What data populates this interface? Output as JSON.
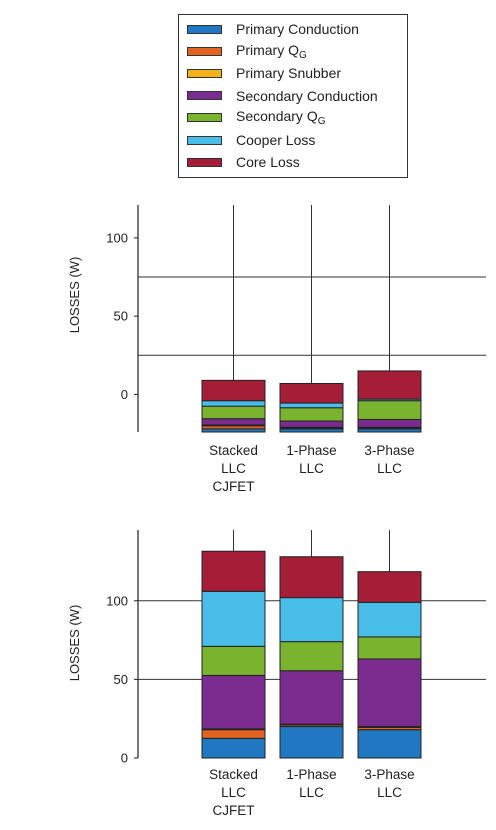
{
  "legend": {
    "items": [
      {
        "main": "Primary Conduction",
        "sub": "",
        "color": "#1f78c1"
      },
      {
        "main": "Primary Q",
        "sub": "G",
        "color": "#e2621f"
      },
      {
        "main": "Primary Snubber",
        "sub": "",
        "color": "#f3b11c"
      },
      {
        "main": "Secondary Conduction",
        "sub": "",
        "color": "#7b2c8f"
      },
      {
        "main": "Secondary Q",
        "sub": "G",
        "color": "#7ab32e"
      },
      {
        "main": "Cooper Loss",
        "sub": "",
        "color": "#48bde8"
      },
      {
        "main": "Core Loss",
        "sub": "",
        "color": "#a51d36"
      }
    ]
  },
  "chart_data": [
    {
      "type": "bar",
      "stacked": true,
      "ylabel": "LOSSES (W)",
      "yticks": [
        0,
        50,
        100
      ],
      "ylim": [
        -24,
        121
      ],
      "gridlines": [
        25,
        75
      ],
      "categories": [
        [
          "Stacked",
          "LLC",
          "CJFET"
        ],
        [
          "1-Phase",
          "LLC"
        ],
        [
          "3-Phase",
          "LLC"
        ]
      ],
      "series": [
        {
          "name": "Primary Conduction",
          "values": [
            2,
            2,
            2
          ]
        },
        {
          "name": "Primary QG",
          "values": [
            2,
            0.5,
            0.5
          ]
        },
        {
          "name": "Primary Snubber",
          "values": [
            0.5,
            0.5,
            0.5
          ]
        },
        {
          "name": "Secondary Conduction",
          "values": [
            4,
            4,
            5
          ]
        },
        {
          "name": "Secondary QG",
          "values": [
            8,
            8.5,
            12
          ]
        },
        {
          "name": "Cooper Loss",
          "values": [
            3.5,
            3,
            1
          ]
        },
        {
          "name": "Core Loss",
          "values": [
            13,
            12.5,
            18
          ]
        }
      ]
    },
    {
      "type": "bar",
      "stacked": true,
      "ylabel": "LOSSES (W)",
      "yticks": [
        0,
        50,
        100
      ],
      "ylim": [
        0,
        145
      ],
      "gridlines": [
        50,
        100
      ],
      "categories": [
        [
          "Stacked",
          "LLC",
          "CJFET"
        ],
        [
          "1-Phase",
          "LLC"
        ],
        [
          "3-Phase",
          "LLC"
        ]
      ],
      "series": [
        {
          "name": "Primary Conduction",
          "values": [
            12.5,
            20,
            18
          ]
        },
        {
          "name": "Primary QG",
          "values": [
            5.5,
            1,
            1.5
          ]
        },
        {
          "name": "Primary Snubber",
          "values": [
            0.5,
            0.5,
            0.5
          ]
        },
        {
          "name": "Secondary Conduction",
          "values": [
            34,
            34,
            43
          ]
        },
        {
          "name": "Secondary QG",
          "values": [
            18.5,
            18.5,
            14
          ]
        },
        {
          "name": "Cooper Loss",
          "values": [
            35,
            28,
            22
          ]
        },
        {
          "name": "Core Loss",
          "values": [
            25.5,
            26,
            19.5
          ]
        }
      ]
    }
  ]
}
